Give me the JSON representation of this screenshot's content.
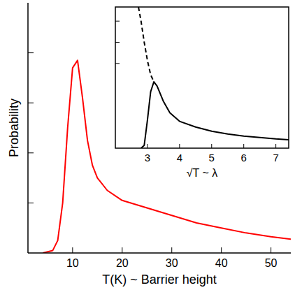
{
  "chart_data": [
    {
      "type": "line",
      "xlabel": "T(K) ~ Barrier height",
      "ylabel": "Probability",
      "xlim": [
        1,
        54
      ],
      "xticks": [
        10,
        20,
        30,
        40,
        50
      ],
      "ylim": [
        0,
        1
      ],
      "yticks": [
        0.2,
        0.4,
        0.6,
        0.8
      ],
      "tick_labels": "x",
      "series": [
        {
          "color": "#ff0000",
          "line_style": "solid",
          "x": [
            4,
            6,
            7,
            8,
            9,
            10,
            11,
            12,
            13,
            14,
            15,
            17,
            20,
            25,
            30,
            35,
            40,
            45,
            50,
            54
          ],
          "values": [
            0,
            0.01,
            0.05,
            0.2,
            0.5,
            0.74,
            0.77,
            0.62,
            0.45,
            0.35,
            0.3,
            0.25,
            0.21,
            0.18,
            0.15,
            0.12,
            0.1,
            0.08,
            0.065,
            0.055
          ]
        }
      ]
    },
    {
      "type": "line",
      "xlabel": "√T ~ λ",
      "xlim": [
        2,
        7.4
      ],
      "xticks": [
        3,
        4,
        5,
        6,
        7
      ],
      "ylim": [
        0,
        1
      ],
      "yticks": [
        0.6,
        0.75,
        0.9
      ],
      "tick_labels": "x",
      "series": [
        {
          "color": "#000000",
          "line_style": "solid",
          "x": [
            2.8,
            2.9,
            3.0,
            3.1,
            3.2,
            3.3,
            3.5,
            3.7,
            4.0,
            4.5,
            5.0,
            5.5,
            6.0,
            6.5,
            7.0,
            7.4
          ],
          "values": [
            0,
            0.02,
            0.2,
            0.4,
            0.47,
            0.44,
            0.33,
            0.25,
            0.19,
            0.15,
            0.12,
            0.1,
            0.085,
            0.075,
            0.065,
            0.06
          ]
        },
        {
          "color": "#000000",
          "line_style": "dashed",
          "x": [
            2.72,
            2.8,
            2.9,
            3.0,
            3.1,
            3.2
          ],
          "values": [
            1.0,
            0.9,
            0.75,
            0.62,
            0.52,
            0.47
          ]
        }
      ]
    }
  ]
}
